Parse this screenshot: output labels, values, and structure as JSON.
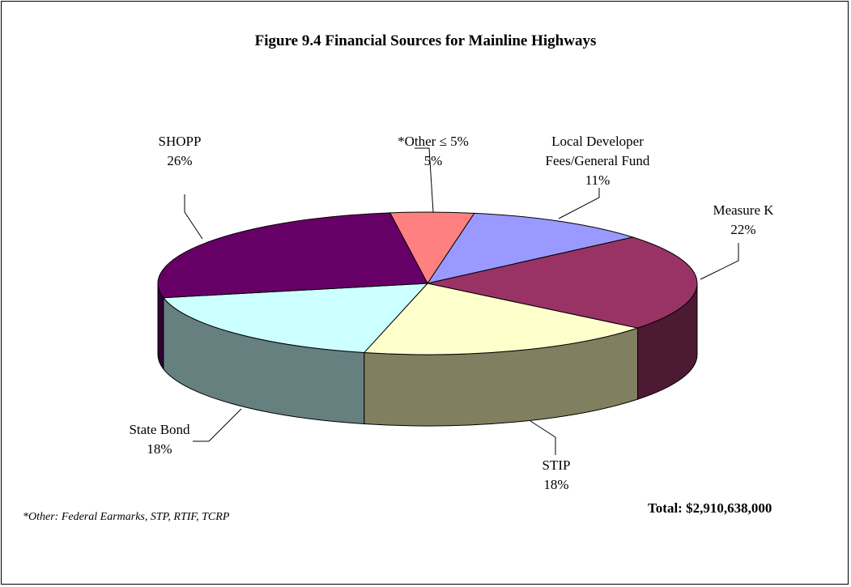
{
  "chart_data": {
    "type": "pie3d",
    "title": "Figure 9.4 Financial Sources for Mainline Highways",
    "categories": [
      "*Other ≤ 5%",
      "Local Developer Fees/General Fund",
      "Measure K",
      "STIP",
      "State Bond",
      "SHOPP"
    ],
    "values": [
      5,
      11,
      22,
      18,
      18,
      26
    ],
    "value_labels": [
      "5%",
      "11%",
      "22%",
      "18%",
      "18%",
      "26%"
    ],
    "colors": [
      "#ff8080",
      "#9999ff",
      "#993366",
      "#ffffcc",
      "#ccffff",
      "#660066"
    ],
    "side_colors": [
      "#804040",
      "#4d4d80",
      "#4d1a33",
      "#808060",
      "#668080",
      "#330033"
    ],
    "footnote": "*Other:  Federal Earmarks, STP, RTIF, TCRP",
    "total": "Total:  $2,910,638,000"
  }
}
